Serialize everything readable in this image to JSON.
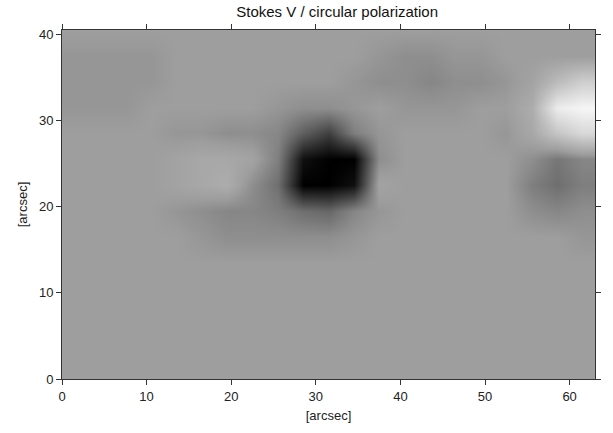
{
  "chart_data": {
    "type": "heatmap",
    "title": "Stokes V / circular polarization",
    "x_label": "[arcsec]",
    "y_label": "[arcsec]",
    "x": [
      1.5,
      4.5,
      7.5,
      10.5,
      13.5,
      16.5,
      19.5,
      22.5,
      25.5,
      28.5,
      31.5,
      34.5,
      37.5,
      40.5,
      43.5,
      46.5,
      49.5,
      52.5,
      55.5,
      58.5,
      61.5
    ],
    "y": [
      1.5,
      4.5,
      7.5,
      10.5,
      13.5,
      16.5,
      19.5,
      22.5,
      25.5,
      28.5,
      31.5,
      34.5,
      37.5,
      40.5
    ],
    "z": [
      [
        0,
        0,
        0,
        0,
        0,
        0,
        0,
        0,
        0,
        0,
        0,
        0,
        0,
        0,
        0,
        0,
        0,
        0,
        0,
        0,
        0
      ],
      [
        0,
        0,
        0,
        0,
        0,
        0,
        0,
        0,
        0,
        0,
        0,
        0,
        0,
        0,
        0,
        0,
        0,
        0,
        0,
        0,
        0
      ],
      [
        0,
        0,
        0,
        0,
        0,
        0,
        0,
        0,
        0,
        0,
        0,
        0,
        0,
        0,
        0,
        0,
        0,
        0,
        0,
        0,
        0
      ],
      [
        0,
        0,
        0,
        0,
        0,
        0,
        0,
        0,
        0,
        0,
        0,
        0,
        0,
        0,
        0,
        0,
        0,
        0,
        0,
        0,
        0
      ],
      [
        0,
        0,
        0,
        0,
        0,
        0,
        0,
        0,
        0,
        0,
        0,
        0,
        0,
        0,
        0,
        0,
        0,
        0,
        0,
        0,
        0
      ],
      [
        0,
        0,
        0,
        0,
        0,
        -0.05,
        -0.1,
        -0.1,
        -0.1,
        -0.1,
        -0.1,
        -0.05,
        0,
        0,
        0,
        0,
        0,
        0,
        0,
        0,
        -0.05
      ],
      [
        0,
        0,
        0,
        0,
        -0.05,
        -0.1,
        -0.15,
        -0.15,
        -0.2,
        -0.3,
        -0.35,
        -0.15,
        -0.05,
        0,
        0,
        0,
        0,
        0,
        -0.1,
        -0.15,
        -0.1
      ],
      [
        0,
        0,
        0,
        0,
        0.05,
        0.1,
        0.15,
        -0.1,
        -0.3,
        -1,
        -1,
        -0.9,
        0.05,
        0,
        0,
        0,
        0,
        0,
        -0.2,
        -0.3,
        -0.2
      ],
      [
        0,
        0,
        0,
        0,
        0.05,
        0.1,
        0.1,
        0.05,
        -0.2,
        -0.9,
        -1,
        -1,
        -0.1,
        0,
        0,
        0,
        0,
        0,
        -0.1,
        -0.25,
        -0.15
      ],
      [
        0,
        0,
        0,
        0,
        -0.05,
        -0.05,
        -0.1,
        -0.1,
        -0.15,
        -0.4,
        -0.6,
        -0.2,
        -0.05,
        0,
        0,
        0,
        0,
        -0.05,
        0.1,
        0.4,
        0.6
      ],
      [
        -0.05,
        -0.05,
        -0.05,
        0,
        0,
        0,
        0,
        0,
        -0.05,
        -0.1,
        -0.1,
        -0.05,
        0,
        -0.05,
        -0.05,
        -0.05,
        0,
        0,
        0.15,
        0.8,
        0.9
      ],
      [
        -0.05,
        -0.05,
        -0.05,
        -0.05,
        0,
        0,
        0,
        0,
        0,
        0,
        0,
        -0.05,
        -0.1,
        -0.1,
        -0.15,
        -0.1,
        -0.1,
        -0.05,
        0.05,
        0.3,
        0.5
      ],
      [
        -0.05,
        -0.05,
        -0.05,
        -0.05,
        0,
        0,
        0,
        0,
        0,
        0,
        0,
        0,
        -0.05,
        -0.1,
        -0.1,
        -0.05,
        -0.05,
        0,
        0,
        0,
        0
      ],
      [
        0,
        0,
        0,
        0,
        0,
        0,
        0,
        0,
        0,
        0,
        0,
        0,
        0,
        0,
        0,
        0,
        0,
        0,
        0,
        0,
        0
      ]
    ],
    "zlim": [
      -1,
      1
    ],
    "xlim": [
      0,
      63
    ],
    "ylim": [
      0,
      40.5
    ],
    "xticks": [
      0,
      10,
      20,
      30,
      40,
      50,
      60
    ],
    "yticks": [
      0,
      10,
      20,
      30,
      40
    ],
    "grid": false
  }
}
